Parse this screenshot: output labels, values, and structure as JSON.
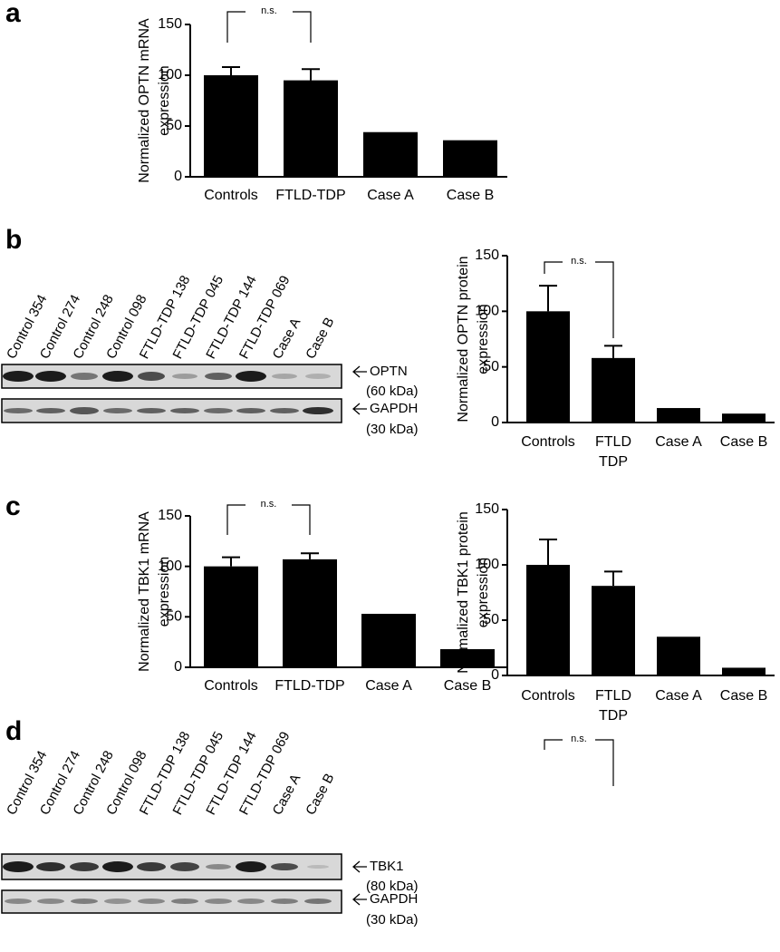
{
  "panel_labels": [
    "a",
    "b",
    "c",
    "d"
  ],
  "blots": [
    {
      "lanes": [
        "Control 354",
        "Control 274",
        "Control 248",
        "Control 098",
        "FTLD-TDP 138",
        "FTLD-TDP 045",
        "FTLD-TDP 144",
        "FTLD-TDP 069",
        "Case A",
        "Case B"
      ],
      "bands": [
        {
          "name": "OPTN",
          "size": "(60 kDa)"
        },
        {
          "name": "GAPDH",
          "size": "(30 kDa)"
        }
      ]
    },
    {
      "lanes": [
        "Control 354",
        "Control 274",
        "Control 248",
        "Control 098",
        "FTLD-TDP 138",
        "FTLD-TDP 045",
        "FTLD-TDP 144",
        "FTLD-TDP 069",
        "Case A",
        "Case B"
      ],
      "bands": [
        {
          "name": "TBK1",
          "size": "(80 kDa)"
        },
        {
          "name": "GAPDH",
          "size": "(30 kDa)"
        }
      ]
    }
  ],
  "chart_data": [
    {
      "type": "bar",
      "ylabel": [
        "Normalized OPTN mRNA",
        "expression"
      ],
      "categories": [
        "Controls",
        "FTLD-TDP",
        "Case A",
        "Case B"
      ],
      "values": [
        100,
        95,
        44,
        36
      ],
      "errors": [
        8,
        11,
        null,
        null
      ],
      "color": "#000000",
      "ylim": [
        0,
        150
      ],
      "yticks": [
        0,
        50,
        100,
        150
      ],
      "annotation": "n.s."
    },
    {
      "type": "bar",
      "ylabel": [
        "Normalized OPTN protein",
        "expression"
      ],
      "categories": [
        "Controls",
        [
          "FTLD",
          "TDP"
        ],
        "Case A",
        "Case B"
      ],
      "values": [
        100,
        58,
        13,
        8
      ],
      "errors": [
        23,
        11,
        null,
        null
      ],
      "color": "#000000",
      "ylim": [
        0,
        150
      ],
      "yticks": [
        0,
        50,
        100,
        150
      ],
      "annotation": "n.s."
    },
    {
      "type": "bar",
      "ylabel": [
        "Normalized TBK1 mRNA",
        "expression"
      ],
      "categories": [
        "Controls",
        "FTLD-TDP",
        "Case A",
        "Case B"
      ],
      "values": [
        100,
        107,
        53,
        18
      ],
      "errors": [
        9,
        6,
        null,
        null
      ],
      "color": "#000000",
      "ylim": [
        0,
        150
      ],
      "yticks": [
        0,
        50,
        100,
        150
      ],
      "annotation": "n.s."
    },
    {
      "type": "bar",
      "ylabel": [
        "Normalized TBK1 protein",
        "expression"
      ],
      "categories": [
        "Controls",
        [
          "FTLD",
          "TDP"
        ],
        "Case A",
        "Case B"
      ],
      "values": [
        100,
        81,
        35,
        7
      ],
      "errors": [
        23,
        13,
        null,
        null
      ],
      "color": "#000000",
      "ylim": [
        0,
        150
      ],
      "yticks": [
        0,
        50,
        100,
        150
      ],
      "annotation": "n.s."
    }
  ]
}
